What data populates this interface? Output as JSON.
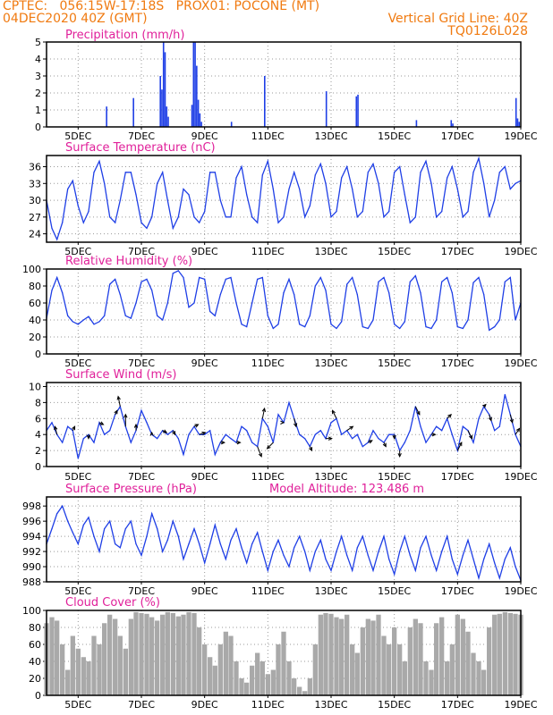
{
  "header": {
    "line1": "CPTEC:   056:15W-17:18S   PROX01: POCONE (MT)",
    "line2_left": "04DEC2020 40Z (GMT)",
    "line2_right": "Vertical Grid Line: 40Z",
    "line3_right": "TQ0126L028"
  },
  "colors": {
    "series": "#1f3fe6",
    "cloud": "#a9a9a9",
    "title": "#e0209a",
    "header": "#f07a10"
  },
  "x_axis_labels": [
    "5DEC",
    "7DEC",
    "9DEC",
    "11DEC",
    "13DEC",
    "15DEC",
    "17DEC",
    "19DEC"
  ],
  "chart_data": [
    {
      "type": "bar",
      "title": "Precipitation (mm/h)",
      "x_range_days": [
        4.0,
        19.0
      ],
      "ylim": [
        0,
        5
      ],
      "yticks": [
        "0",
        "1",
        "2",
        "3",
        "4",
        "5"
      ],
      "x": [
        5.9,
        6.75,
        7.6,
        7.65,
        7.7,
        7.75,
        7.8,
        7.85,
        8.6,
        8.65,
        8.7,
        8.75,
        8.8,
        8.85,
        8.9,
        9.85,
        10.9,
        12.85,
        13.8,
        13.85,
        15.7,
        16.8,
        16.85,
        18.85,
        18.9,
        18.95
      ],
      "values": [
        1.2,
        1.7,
        3.0,
        2.2,
        5.0,
        4.4,
        1.2,
        0.6,
        1.3,
        5.0,
        5.0,
        3.6,
        1.6,
        0.8,
        0.3,
        0.3,
        3.0,
        2.1,
        1.8,
        1.9,
        0.4,
        0.4,
        0.2,
        1.7,
        0.5,
        0.3
      ],
      "grid": true
    },
    {
      "type": "line",
      "title": "Surface Temperature (nC)",
      "x_range_days": [
        4.0,
        19.0
      ],
      "ylim": [
        22.5,
        38.0
      ],
      "yticks": [
        "24",
        "27",
        "30",
        "33",
        "36"
      ],
      "x": [
        4.0,
        4.17,
        4.33,
        4.5,
        4.67,
        4.83,
        5.0,
        5.17,
        5.33,
        5.5,
        5.67,
        5.83,
        6.0,
        6.17,
        6.33,
        6.5,
        6.67,
        6.83,
        7.0,
        7.17,
        7.33,
        7.5,
        7.67,
        7.83,
        8.0,
        8.17,
        8.33,
        8.5,
        8.67,
        8.83,
        9.0,
        9.17,
        9.33,
        9.5,
        9.67,
        9.83,
        10.0,
        10.17,
        10.33,
        10.5,
        10.67,
        10.83,
        11.0,
        11.17,
        11.33,
        11.5,
        11.67,
        11.83,
        12.0,
        12.17,
        12.33,
        12.5,
        12.67,
        12.83,
        13.0,
        13.17,
        13.33,
        13.5,
        13.67,
        13.83,
        14.0,
        14.17,
        14.33,
        14.5,
        14.67,
        14.83,
        15.0,
        15.17,
        15.33,
        15.5,
        15.67,
        15.83,
        16.0,
        16.17,
        16.33,
        16.5,
        16.67,
        16.83,
        17.0,
        17.17,
        17.33,
        17.5,
        17.67,
        17.83,
        18.0,
        18.17,
        18.33,
        18.5,
        18.67,
        18.83,
        19.0
      ],
      "values": [
        30.0,
        25.0,
        23.0,
        26.0,
        32.0,
        33.5,
        29.0,
        26.0,
        28.0,
        35.0,
        37.0,
        33.0,
        27.0,
        26.0,
        30.0,
        35.0,
        35.0,
        31.0,
        26.0,
        25.0,
        27.0,
        33.0,
        35.0,
        30.0,
        25.0,
        27.0,
        32.0,
        31.0,
        27.0,
        26.0,
        28.0,
        35.0,
        35.0,
        30.0,
        27.0,
        27.0,
        34.0,
        36.0,
        31.0,
        27.0,
        26.0,
        34.5,
        37.0,
        32.0,
        26.0,
        27.0,
        32.0,
        35.0,
        32.0,
        27.0,
        29.0,
        34.5,
        36.5,
        33.0,
        27.0,
        28.0,
        34.0,
        36.0,
        32.0,
        27.0,
        28.0,
        35.0,
        36.5,
        33.0,
        27.0,
        28.0,
        35.0,
        36.0,
        31.0,
        26.0,
        27.0,
        35.0,
        37.0,
        33.0,
        27.0,
        28.0,
        34.0,
        36.0,
        32.0,
        27.0,
        28.0,
        35.0,
        37.5,
        33.0,
        27.0,
        30.0,
        35.0,
        36.0,
        32.0,
        33.0,
        33.5
      ],
      "grid": true
    },
    {
      "type": "line",
      "title": "Relative Humidity (%)",
      "x_range_days": [
        4.0,
        19.0
      ],
      "ylim": [
        0,
        100
      ],
      "yticks": [
        "0",
        "20",
        "40",
        "60",
        "80",
        "100"
      ],
      "x": [
        4.0,
        4.17,
        4.33,
        4.5,
        4.67,
        4.83,
        5.0,
        5.17,
        5.33,
        5.5,
        5.67,
        5.83,
        6.0,
        6.17,
        6.33,
        6.5,
        6.67,
        6.83,
        7.0,
        7.17,
        7.33,
        7.5,
        7.67,
        7.83,
        8.0,
        8.17,
        8.33,
        8.5,
        8.67,
        8.83,
        9.0,
        9.17,
        9.33,
        9.5,
        9.67,
        9.83,
        10.0,
        10.17,
        10.33,
        10.5,
        10.67,
        10.83,
        11.0,
        11.17,
        11.33,
        11.5,
        11.67,
        11.83,
        12.0,
        12.17,
        12.33,
        12.5,
        12.67,
        12.83,
        13.0,
        13.17,
        13.33,
        13.5,
        13.67,
        13.83,
        14.0,
        14.17,
        14.33,
        14.5,
        14.67,
        14.83,
        15.0,
        15.17,
        15.33,
        15.5,
        15.67,
        15.83,
        16.0,
        16.17,
        16.33,
        16.5,
        16.67,
        16.83,
        17.0,
        17.17,
        17.33,
        17.5,
        17.67,
        17.83,
        18.0,
        18.17,
        18.33,
        18.5,
        18.67,
        18.83,
        19.0
      ],
      "values": [
        42.0,
        75.0,
        90.0,
        72.0,
        45.0,
        38.0,
        35.0,
        40.0,
        44.0,
        35.0,
        38.0,
        45.0,
        82.0,
        88.0,
        70.0,
        45.0,
        42.0,
        60.0,
        85.0,
        88.0,
        75.0,
        45.0,
        40.0,
        60.0,
        95.0,
        98.0,
        90.0,
        55.0,
        60.0,
        90.0,
        88.0,
        50.0,
        45.0,
        70.0,
        88.0,
        90.0,
        60.0,
        35.0,
        32.0,
        60.0,
        88.0,
        90.0,
        45.0,
        30.0,
        35.0,
        72.0,
        88.0,
        70.0,
        35.0,
        32.0,
        45.0,
        80.0,
        90.0,
        75.0,
        35.0,
        30.0,
        38.0,
        82.0,
        90.0,
        70.0,
        32.0,
        30.0,
        40.0,
        85.0,
        90.0,
        72.0,
        35.0,
        30.0,
        38.0,
        85.0,
        92.0,
        72.0,
        32.0,
        30.0,
        40.0,
        85.0,
        90.0,
        72.0,
        32.0,
        30.0,
        40.0,
        84.0,
        90.0,
        70.0,
        28.0,
        32.0,
        40.0,
        85.0,
        90.0,
        40.0,
        60.0
      ],
      "grid": true
    },
    {
      "type": "line",
      "title": "Surface Wind (m/s)",
      "x_range_days": [
        4.0,
        19.0
      ],
      "ylim": [
        0,
        10.5
      ],
      "yticks": [
        "0",
        "2",
        "4",
        "6",
        "8",
        "10"
      ],
      "x": [
        4.0,
        4.17,
        4.33,
        4.5,
        4.67,
        4.83,
        5.0,
        5.17,
        5.33,
        5.5,
        5.67,
        5.83,
        6.0,
        6.17,
        6.33,
        6.5,
        6.67,
        6.83,
        7.0,
        7.17,
        7.33,
        7.5,
        7.67,
        7.83,
        8.0,
        8.17,
        8.33,
        8.5,
        8.67,
        8.83,
        9.0,
        9.17,
        9.33,
        9.5,
        9.67,
        9.83,
        10.0,
        10.17,
        10.33,
        10.5,
        10.67,
        10.83,
        11.0,
        11.17,
        11.33,
        11.5,
        11.67,
        11.83,
        12.0,
        12.17,
        12.33,
        12.5,
        12.67,
        12.83,
        13.0,
        13.17,
        13.33,
        13.5,
        13.67,
        13.83,
        14.0,
        14.17,
        14.33,
        14.5,
        14.67,
        14.83,
        15.0,
        15.17,
        15.33,
        15.5,
        15.67,
        15.83,
        16.0,
        16.17,
        16.33,
        16.5,
        16.67,
        16.83,
        17.0,
        17.17,
        17.33,
        17.5,
        17.67,
        17.83,
        18.0,
        18.17,
        18.33,
        18.5,
        18.67,
        18.83,
        19.0
      ],
      "values": [
        4.5,
        5.5,
        4.0,
        3.0,
        5.0,
        4.5,
        1.0,
        3.5,
        4.0,
        3.0,
        5.5,
        4.0,
        4.5,
        6.5,
        7.5,
        5.0,
        3.0,
        4.5,
        7.0,
        5.5,
        4.0,
        3.5,
        4.5,
        4.0,
        4.5,
        3.5,
        1.5,
        4.0,
        5.0,
        4.0,
        4.0,
        4.5,
        1.5,
        3.0,
        4.0,
        3.5,
        3.0,
        5.0,
        4.5,
        3.0,
        2.5,
        6.0,
        5.0,
        3.0,
        6.5,
        5.5,
        8.0,
        6.0,
        4.0,
        3.5,
        2.5,
        4.0,
        4.5,
        3.5,
        5.5,
        6.0,
        4.0,
        4.5,
        3.5,
        4.0,
        2.5,
        3.0,
        4.5,
        3.5,
        3.0,
        4.0,
        4.0,
        2.0,
        3.0,
        4.5,
        7.5,
        5.0,
        3.0,
        4.0,
        5.0,
        4.5,
        6.0,
        4.0,
        2.0,
        5.0,
        4.5,
        3.0,
        6.0,
        7.5,
        6.5,
        4.5,
        5.0,
        9.0,
        6.5,
        4.0,
        2.5
      ],
      "arrows": [
        {
          "x": 4.33,
          "u": -0.5,
          "v": 2.0
        },
        {
          "x": 4.83,
          "u": 0.5,
          "v": 1.0
        },
        {
          "x": 5.33,
          "u": 0.0,
          "v": -1.0
        },
        {
          "x": 5.67,
          "u": 1.0,
          "v": -0.5
        },
        {
          "x": 6.17,
          "u": 0.5,
          "v": 1.0
        },
        {
          "x": 6.33,
          "u": -0.5,
          "v": 2.5
        },
        {
          "x": 6.5,
          "u": 0.0,
          "v": 3.0
        },
        {
          "x": 6.83,
          "u": 0.0,
          "v": 1.5
        },
        {
          "x": 7.33,
          "u": 0.0,
          "v": 0.5
        },
        {
          "x": 7.67,
          "u": 1.0,
          "v": -0.5
        },
        {
          "x": 8.0,
          "u": 0.5,
          "v": -1.0
        },
        {
          "x": 8.67,
          "u": 1.0,
          "v": 0.5
        },
        {
          "x": 8.83,
          "u": 1.5,
          "v": 0.5
        },
        {
          "x": 9.5,
          "u": 1.0,
          "v": 0.0
        },
        {
          "x": 10.0,
          "u": 1.0,
          "v": 0.0
        },
        {
          "x": 10.67,
          "u": 1.0,
          "v": -2.5
        },
        {
          "x": 10.83,
          "u": 0.5,
          "v": 2.5
        },
        {
          "x": 11.17,
          "u": -1.5,
          "v": -1.5
        },
        {
          "x": 11.5,
          "u": 0.0,
          "v": 0.0
        },
        {
          "x": 11.83,
          "u": 0.5,
          "v": -2.0
        },
        {
          "x": 12.33,
          "u": 0.5,
          "v": -1.0
        },
        {
          "x": 12.83,
          "u": 1.5,
          "v": 0.0
        },
        {
          "x": 13.17,
          "u": -1.0,
          "v": 2.0
        },
        {
          "x": 13.5,
          "u": 1.5,
          "v": 1.0
        },
        {
          "x": 14.17,
          "u": 1.0,
          "v": 0.5
        },
        {
          "x": 14.67,
          "u": 0.5,
          "v": -1.0
        },
        {
          "x": 15.0,
          "u": 0.0,
          "v": -1.0
        },
        {
          "x": 15.17,
          "u": 0.0,
          "v": -1.5
        },
        {
          "x": 15.67,
          "u": 1.0,
          "v": -2.0
        },
        {
          "x": 16.17,
          "u": 1.0,
          "v": 0.0
        },
        {
          "x": 16.67,
          "u": 1.0,
          "v": 1.0
        },
        {
          "x": 17.0,
          "u": 1.0,
          "v": 2.0
        },
        {
          "x": 17.33,
          "u": 1.0,
          "v": -2.0
        },
        {
          "x": 17.83,
          "u": 0.5,
          "v": 0.5
        },
        {
          "x": 18.0,
          "u": 0.5,
          "v": -1.5
        },
        {
          "x": 18.67,
          "u": 0.5,
          "v": -2.0
        },
        {
          "x": 18.83,
          "u": 1.0,
          "v": 1.5
        }
      ],
      "grid": true
    },
    {
      "type": "line",
      "title": "Surface Pressure (hPa)",
      "annotation": "Model Altitude: 123.486 m",
      "x_range_days": [
        4.0,
        19.0
      ],
      "ylim": [
        988,
        999.2
      ],
      "yticks": [
        "988",
        "990",
        "992",
        "994",
        "996",
        "998"
      ],
      "x": [
        4.0,
        4.17,
        4.33,
        4.5,
        4.67,
        4.83,
        5.0,
        5.17,
        5.33,
        5.5,
        5.67,
        5.83,
        6.0,
        6.17,
        6.33,
        6.5,
        6.67,
        6.83,
        7.0,
        7.17,
        7.33,
        7.5,
        7.67,
        7.83,
        8.0,
        8.17,
        8.33,
        8.5,
        8.67,
        8.83,
        9.0,
        9.17,
        9.33,
        9.5,
        9.67,
        9.83,
        10.0,
        10.17,
        10.33,
        10.5,
        10.67,
        10.83,
        11.0,
        11.17,
        11.33,
        11.5,
        11.67,
        11.83,
        12.0,
        12.17,
        12.33,
        12.5,
        12.67,
        12.83,
        13.0,
        13.17,
        13.33,
        13.5,
        13.67,
        13.83,
        14.0,
        14.17,
        14.33,
        14.5,
        14.67,
        14.83,
        15.0,
        15.17,
        15.33,
        15.5,
        15.67,
        15.83,
        16.0,
        16.17,
        16.33,
        16.5,
        16.67,
        16.83,
        17.0,
        17.17,
        17.33,
        17.5,
        17.67,
        17.83,
        18.0,
        18.17,
        18.33,
        18.5,
        18.67,
        18.83,
        19.0
      ],
      "values": [
        993.0,
        995.0,
        997.0,
        998.0,
        996.0,
        994.5,
        993.0,
        995.5,
        996.5,
        994.0,
        992.0,
        995.0,
        996.0,
        993.0,
        992.5,
        995.0,
        996.0,
        993.0,
        991.5,
        994.0,
        997.0,
        995.0,
        992.0,
        993.5,
        996.0,
        994.0,
        991.0,
        993.0,
        995.0,
        993.0,
        990.5,
        993.0,
        995.5,
        993.0,
        991.0,
        993.5,
        995.0,
        992.5,
        990.5,
        993.0,
        994.5,
        992.0,
        989.5,
        992.0,
        993.5,
        991.5,
        990.0,
        992.5,
        994.0,
        992.0,
        989.5,
        992.0,
        993.5,
        991.0,
        989.5,
        992.0,
        994.0,
        991.5,
        989.5,
        992.5,
        994.0,
        991.5,
        989.5,
        992.0,
        994.0,
        991.0,
        989.0,
        992.0,
        994.0,
        991.5,
        989.5,
        992.5,
        994.0,
        991.5,
        989.5,
        992.0,
        994.0,
        991.0,
        989.0,
        991.5,
        993.5,
        991.0,
        988.5,
        991.0,
        993.0,
        990.5,
        988.5,
        991.0,
        992.5,
        990.0,
        988.2
      ],
      "grid": true
    },
    {
      "type": "area",
      "title": "Cloud Cover (%)",
      "x_range_days": [
        4.0,
        19.0
      ],
      "ylim": [
        0,
        100
      ],
      "yticks": [
        "0",
        "20",
        "40",
        "60",
        "80",
        "100"
      ],
      "x": [
        4.0,
        4.17,
        4.33,
        4.5,
        4.67,
        4.83,
        5.0,
        5.17,
        5.33,
        5.5,
        5.67,
        5.83,
        6.0,
        6.17,
        6.33,
        6.5,
        6.67,
        6.83,
        7.0,
        7.17,
        7.33,
        7.5,
        7.67,
        7.83,
        8.0,
        8.17,
        8.33,
        8.5,
        8.67,
        8.83,
        9.0,
        9.17,
        9.33,
        9.5,
        9.67,
        9.83,
        10.0,
        10.17,
        10.33,
        10.5,
        10.67,
        10.83,
        11.0,
        11.17,
        11.33,
        11.5,
        11.67,
        11.83,
        12.0,
        12.17,
        12.33,
        12.5,
        12.67,
        12.83,
        13.0,
        13.17,
        13.33,
        13.5,
        13.67,
        13.83,
        14.0,
        14.17,
        14.33,
        14.5,
        14.67,
        14.83,
        15.0,
        15.17,
        15.33,
        15.5,
        15.67,
        15.83,
        16.0,
        16.17,
        16.33,
        16.5,
        16.67,
        16.83,
        17.0,
        17.17,
        17.33,
        17.5,
        17.67,
        17.83,
        18.0,
        18.17,
        18.33,
        18.5,
        18.67,
        18.83,
        19.0
      ],
      "values": [
        85.0,
        92.0,
        88.0,
        60.0,
        30.0,
        70.0,
        55.0,
        45.0,
        40.0,
        70.0,
        60.0,
        85.0,
        95.0,
        90.0,
        70.0,
        55.0,
        90.0,
        98.0,
        97.0,
        96.0,
        92.0,
        88.0,
        95.0,
        98.0,
        97.0,
        93.0,
        95.0,
        98.0,
        97.0,
        80.0,
        60.0,
        45.0,
        35.0,
        60.0,
        75.0,
        70.0,
        40.0,
        20.0,
        15.0,
        35.0,
        50.0,
        40.0,
        25.0,
        30.0,
        60.0,
        75.0,
        40.0,
        20.0,
        10.0,
        5.0,
        20.0,
        60.0,
        95.0,
        97.0,
        96.0,
        92.0,
        90.0,
        95.0,
        60.0,
        50.0,
        80.0,
        90.0,
        88.0,
        95.0,
        70.0,
        60.0,
        80.0,
        60.0,
        40.0,
        80.0,
        90.0,
        85.0,
        40.0,
        30.0,
        85.0,
        92.0,
        40.0,
        60.0,
        95.0,
        90.0,
        75.0,
        50.0,
        40.0,
        30.0,
        80.0,
        95.0,
        96.0,
        98.0,
        97.0,
        96.0,
        95.0
      ],
      "grid": true
    }
  ]
}
